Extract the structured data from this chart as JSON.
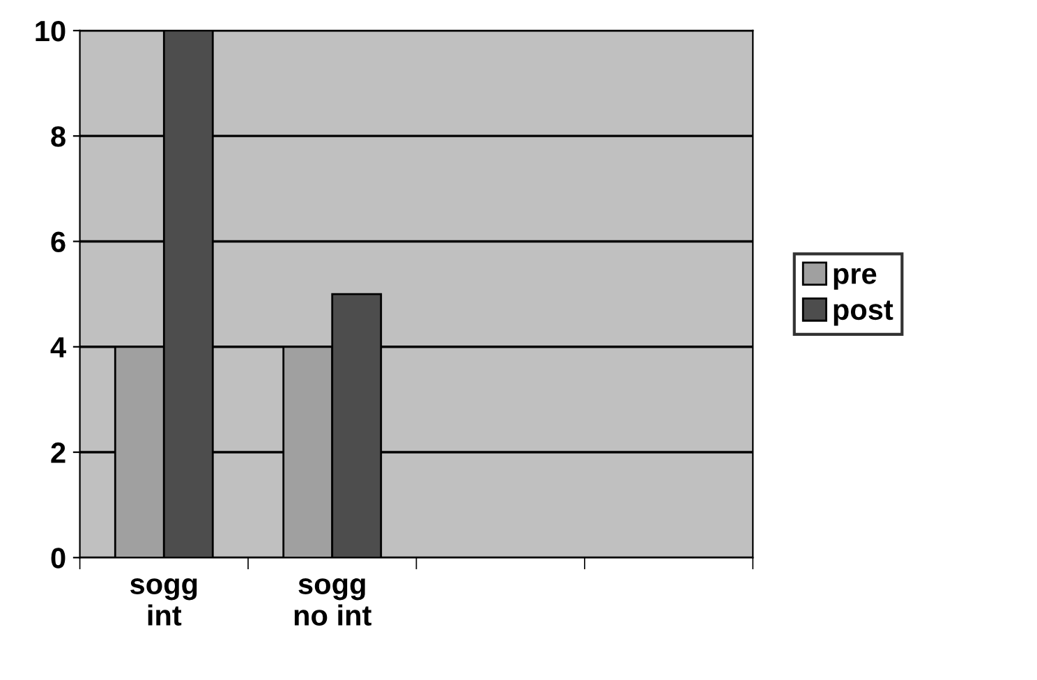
{
  "chart_data": {
    "type": "bar",
    "categories": [
      "sogg\nint",
      "sogg\nno int",
      null,
      null
    ],
    "series": [
      {
        "name": "pre",
        "color": "#a0a0a0",
        "values": [
          4,
          4,
          null,
          null
        ]
      },
      {
        "name": "post",
        "color": "#4d4d4d",
        "values": [
          10,
          5,
          null,
          null
        ]
      }
    ],
    "ylim": [
      0,
      10
    ],
    "yticks": [
      0,
      2,
      4,
      6,
      8,
      10
    ],
    "grid": "y",
    "legend": "right"
  }
}
